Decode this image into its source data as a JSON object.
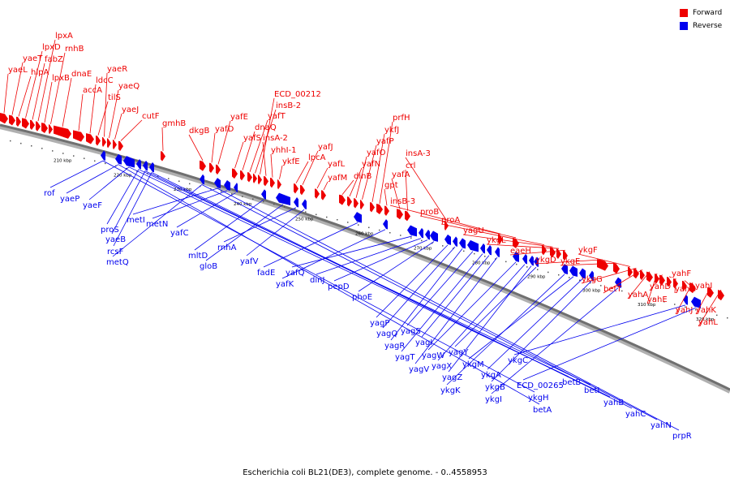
{
  "legend": [
    {
      "label": "Forward",
      "color": "#ee0000"
    },
    {
      "label": "Reverse",
      "color": "#0000ee"
    }
  ],
  "caption": "Escherichia coli BL21(DE3), complete genome. - 0..4558953",
  "colors": {
    "forward": "#ee0000",
    "reverse": "#0000ee",
    "axis": "#707070",
    "label_line_forward": "#ee0000",
    "label_line_reverse": "#0000ee"
  },
  "ticks": [
    "210 kbp",
    "220 kbp",
    "230 kbp",
    "240 kbp",
    "250 kbp",
    "260 kbp",
    "270 kbp",
    "280 kbp",
    "290 kbp",
    "300 kbp",
    "310 kbp",
    "320 kbp"
  ],
  "forward_genes": [
    "yaeL",
    "yaeT",
    "hlpA",
    "lpxD",
    "fabZ",
    "lpxA",
    "lpxB",
    "rnhB",
    "dnaE",
    "accA",
    "ldcC",
    "tilS",
    "yaeR",
    "yaeQ",
    "yaeJ",
    "cutF",
    "gmhB",
    "dkgB",
    "yafD",
    "yafE",
    "yafS",
    "dnaQ",
    "yafT",
    "insB-2",
    "ECD_00212",
    "insA-2",
    "yhhI-1",
    "ykfE",
    "lpcA",
    "yafJ",
    "yafL",
    "yafM",
    "dinB",
    "yafN",
    "yafO",
    "yafP",
    "ykfJ",
    "prfH",
    "gpt",
    "yafA",
    "crl",
    "insA-3",
    "insB-3",
    "proB",
    "proA",
    "yagU",
    "ykgL",
    "eaeH",
    "ykgD",
    "ykgE",
    "ykgF",
    "ykgG",
    "betT",
    "yahA",
    "yahE",
    "yahD",
    "yahF",
    "yahG",
    "yahI",
    "yahJ",
    "yahK",
    "yahL"
  ],
  "reverse_genes": [
    "rof",
    "yaeP",
    "yaeF",
    "proS",
    "yaeB",
    "rcsF",
    "metQ",
    "metI",
    "metN",
    "yafC",
    "mltD",
    "gloB",
    "rnhA",
    "yafV",
    "fadE",
    "yafK",
    "yafQ",
    "dinJ",
    "pepD",
    "phoE",
    "yagP",
    "yagQ",
    "yagR",
    "yagS",
    "yagT",
    "yagI",
    "yagV",
    "yagW",
    "yagX",
    "yagZ",
    "yagY",
    "ykgK",
    "ykgM",
    "ykgA",
    "ykgB",
    "ykgI",
    "ykgC",
    "ECD_00265",
    "ykgH",
    "betA",
    "betB",
    "betI",
    "yahB",
    "yahC",
    "yahN",
    "prpR"
  ]
}
